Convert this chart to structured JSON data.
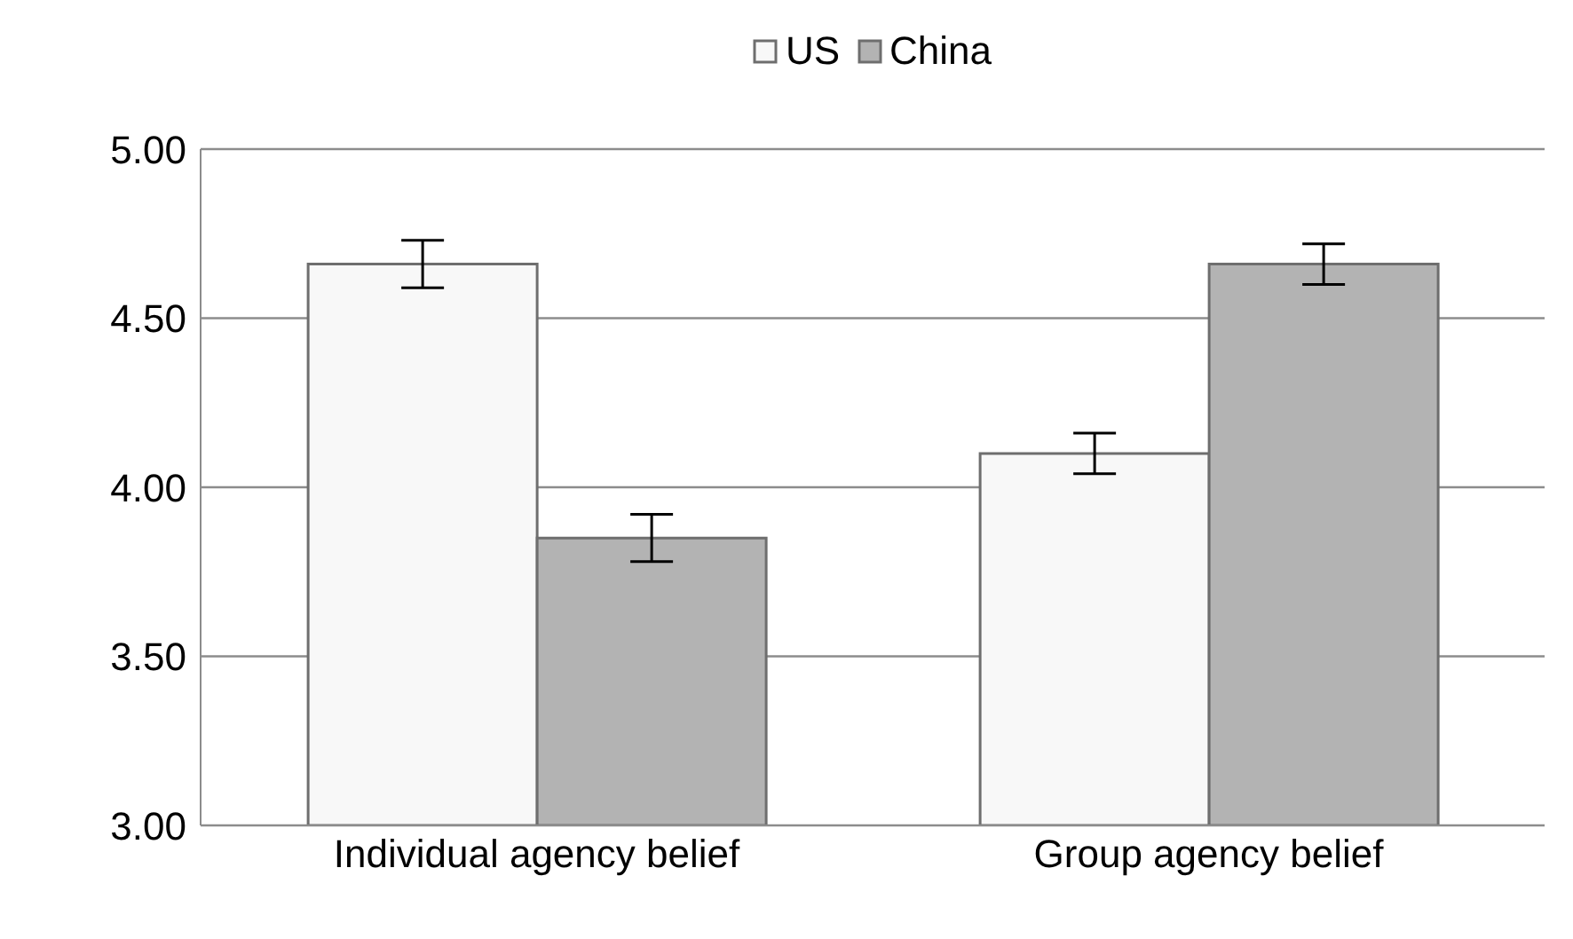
{
  "chart_data": {
    "type": "bar",
    "categories": [
      "Individual agency belief",
      "Group agency belief"
    ],
    "series": [
      {
        "name": "US",
        "color": "#f8f8f8",
        "values": [
          4.66,
          4.1
        ],
        "errors": [
          0.07,
          0.06
        ]
      },
      {
        "name": "China",
        "color": "#b3b3b3",
        "values": [
          3.85,
          4.66
        ],
        "errors": [
          0.07,
          0.06
        ]
      }
    ],
    "ylim": [
      3,
      5
    ],
    "yticks": [
      {
        "value": 3,
        "label": "3.00"
      },
      {
        "value": 3.5,
        "label": "3.50"
      },
      {
        "value": 4,
        "label": "4.00"
      },
      {
        "value": 4.5,
        "label": "4.50"
      },
      {
        "value": 5,
        "label": "5.00"
      }
    ],
    "grid": "y",
    "legend": "top"
  }
}
